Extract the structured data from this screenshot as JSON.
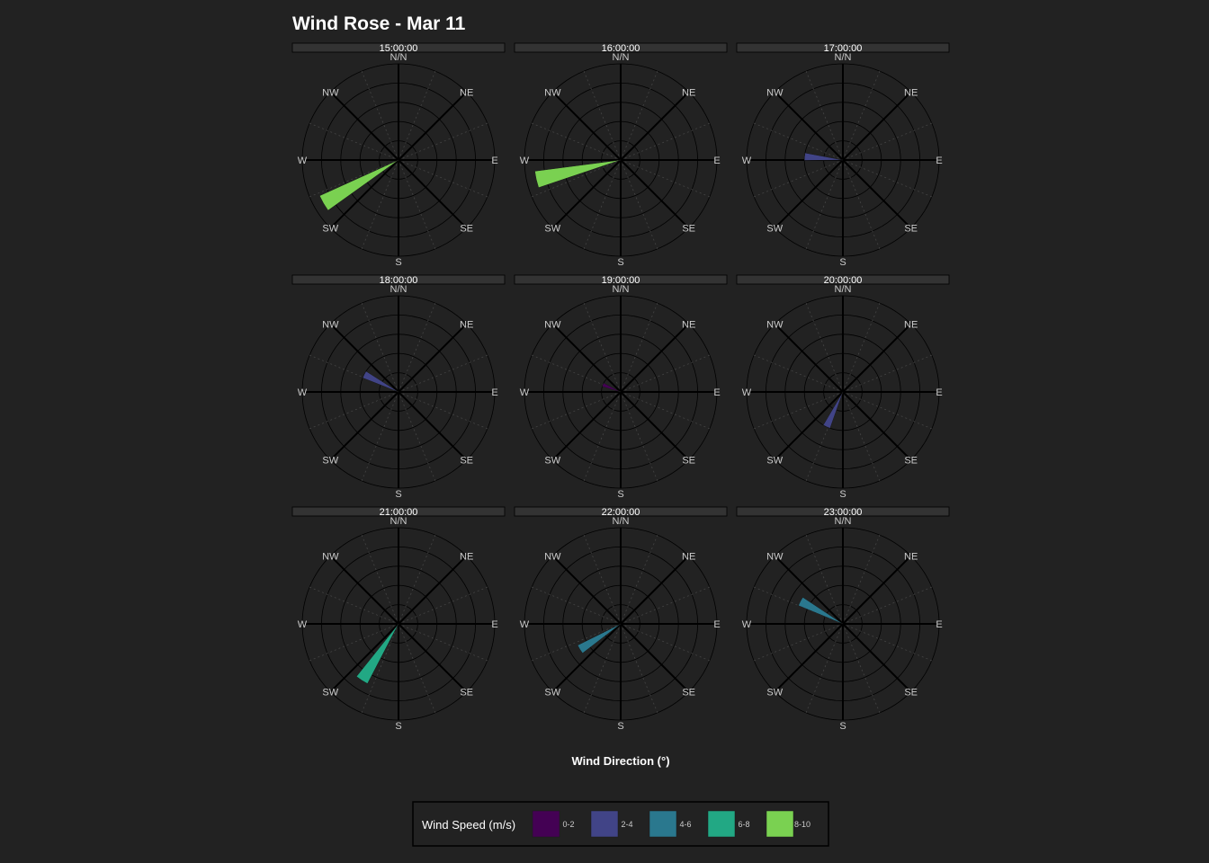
{
  "chart_data": {
    "type": "wind_rose",
    "title": "Wind Rose - Mar 11",
    "xlabel": "Wind Direction (°)",
    "direction_labels": [
      "N/N",
      "NE",
      "E",
      "SE",
      "S",
      "SW",
      "W",
      "NW"
    ],
    "radial_max": 10,
    "radial_rings": [
      2,
      4,
      6,
      8,
      10
    ],
    "legend": {
      "title": "Wind Speed (m/s)",
      "position": "bottom",
      "bins": [
        {
          "label": "0-2",
          "color": "#440154"
        },
        {
          "label": "2-4",
          "color": "#414487"
        },
        {
          "label": "4-6",
          "color": "#2a788e"
        },
        {
          "label": "6-8",
          "color": "#22a884"
        },
        {
          "label": "8-10",
          "color": "#7ad151"
        }
      ]
    },
    "panels": [
      {
        "time": "15:00:00",
        "direction": 240,
        "speed": 9,
        "bin": "8-10"
      },
      {
        "time": "16:00:00",
        "direction": 257,
        "speed": 9,
        "bin": "8-10"
      },
      {
        "time": "17:00:00",
        "direction": 275,
        "speed": 4,
        "bin": "2-4"
      },
      {
        "time": "18:00:00",
        "direction": 297,
        "speed": 4,
        "bin": "2-4"
      },
      {
        "time": "19:00:00",
        "direction": 292,
        "speed": 2,
        "bin": "0-2"
      },
      {
        "time": "20:00:00",
        "direction": 205,
        "speed": 4,
        "bin": "2-4"
      },
      {
        "time": "21:00:00",
        "direction": 213,
        "speed": 7,
        "bin": "6-8"
      },
      {
        "time": "22:00:00",
        "direction": 238,
        "speed": 5,
        "bin": "4-6"
      },
      {
        "time": "23:00:00",
        "direction": 298,
        "speed": 5,
        "bin": "4-6"
      }
    ]
  },
  "colors": {
    "background": "#222222",
    "strip_fill": "#333333",
    "grid_major": "#000000",
    "grid_minor": "#444444",
    "text_muted": "#cccccc"
  }
}
